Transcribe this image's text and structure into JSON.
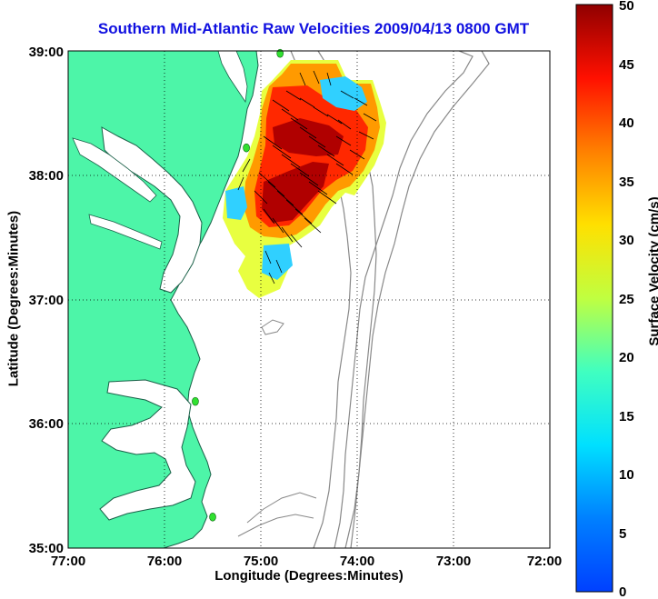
{
  "title": "Southern Mid-Atlantic Raw Velocities 2009/04/13 0800 GMT",
  "x_axis": {
    "label": "Longitude (Degrees:Minutes)",
    "ticks": [
      "77:00",
      "76:00",
      "75:00",
      "74:00",
      "73:00",
      "72:00"
    ]
  },
  "y_axis": {
    "label": "Latitude (Degrees:Minutes)",
    "ticks": [
      "39:00",
      "38:00",
      "37:00",
      "36:00",
      "35:00"
    ]
  },
  "colorbar": {
    "label": "Surface Velocity (cm/s)",
    "ticks": [
      "50",
      "45",
      "40",
      "35",
      "30",
      "25",
      "20",
      "15",
      "10",
      "5",
      "0"
    ],
    "min": 0,
    "max": 50
  },
  "colors": {
    "land": "#4df5a8",
    "title": "#1010e0",
    "station": "#30e030"
  },
  "map": {
    "lon_range": [
      -77,
      -72
    ],
    "lat_range": [
      35,
      39
    ],
    "grid": true,
    "stations": [
      {
        "lon": -74.8,
        "lat": 38.98
      },
      {
        "lon": -75.15,
        "lat": 38.22
      },
      {
        "lon": -75.68,
        "lat": 36.18
      },
      {
        "lon": -75.5,
        "lat": 35.25
      }
    ]
  }
}
